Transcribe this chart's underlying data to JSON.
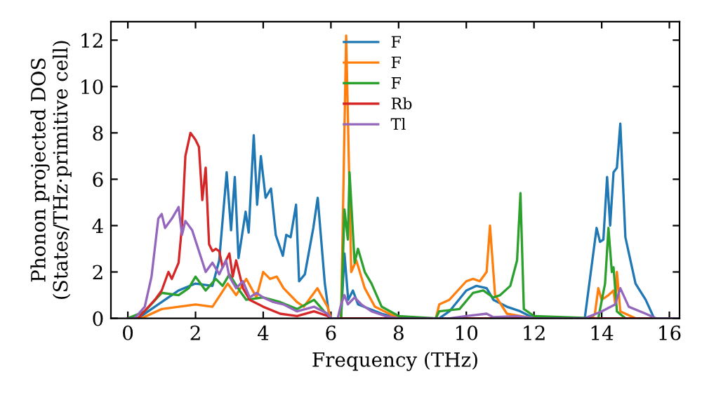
{
  "chart_data": {
    "type": "line",
    "xlabel": "Frequency (THz)",
    "ylabel": "Phonon projected DOS\n(States/THz·primitive cell)",
    "xlim": [
      -0.5,
      16.3
    ],
    "ylim": [
      0,
      12.8
    ],
    "xticks": [
      0,
      2,
      4,
      6,
      8,
      10,
      12,
      14,
      16
    ],
    "yticks": [
      0,
      2,
      4,
      6,
      8,
      10,
      12
    ],
    "grid": false,
    "legend": "top",
    "marker": "none",
    "line_style": "solid",
    "series": [
      {
        "name": "F",
        "color": "#1f77b4",
        "x": [
          0,
          0.3,
          1.0,
          1.5,
          2.0,
          2.5,
          2.7,
          2.92,
          3.05,
          3.16,
          3.27,
          3.48,
          3.57,
          3.72,
          3.82,
          3.93,
          4.07,
          4.23,
          4.37,
          4.58,
          4.68,
          4.81,
          4.97,
          5.06,
          5.23,
          5.48,
          5.61,
          5.82,
          5.96,
          6.3,
          6.4,
          6.51,
          6.65,
          6.8,
          7.5,
          8.0,
          9.2,
          9.5,
          10.0,
          10.3,
          10.6,
          10.8,
          11.2,
          11.6,
          12.0,
          13.5,
          13.85,
          13.95,
          14.05,
          14.16,
          14.25,
          14.35,
          14.45,
          14.55,
          14.7,
          15.0,
          15.3,
          15.55,
          16.3
        ],
        "values": [
          0,
          0,
          0.7,
          1.2,
          1.5,
          1.4,
          2.5,
          6.3,
          3.8,
          6.1,
          2.6,
          4.6,
          3.7,
          7.9,
          4.9,
          7.0,
          5.2,
          5.6,
          3.6,
          2.7,
          3.6,
          3.5,
          4.9,
          1.6,
          1.9,
          3.9,
          5.2,
          1.5,
          0,
          0,
          2.8,
          0.8,
          1.2,
          0.6,
          0.2,
          0,
          0,
          0.3,
          1.2,
          1.4,
          1.3,
          0.8,
          0.5,
          0.3,
          0,
          0,
          3.9,
          3.3,
          3.4,
          6.1,
          4.0,
          6.3,
          6.5,
          8.4,
          3.5,
          1.5,
          0.8,
          0,
          0
        ]
      },
      {
        "name": "F",
        "color": "#ff7f0e",
        "x": [
          0,
          0.4,
          1.0,
          1.5,
          2.0,
          2.5,
          2.95,
          3.2,
          3.5,
          3.8,
          4.0,
          4.2,
          4.4,
          4.6,
          5.0,
          5.2,
          5.6,
          5.9,
          6.0,
          6.3,
          6.45,
          6.6,
          6.75,
          7.0,
          7.3,
          8.0,
          9.1,
          9.2,
          9.5,
          10.0,
          10.2,
          10.4,
          10.6,
          10.7,
          10.85,
          11.2,
          11.6,
          12.0,
          13.7,
          13.8,
          13.9,
          14.0,
          14.2,
          14.35,
          14.4,
          14.45,
          14.55,
          15.0,
          16.3
        ],
        "values": [
          0,
          0,
          0.4,
          0.5,
          0.6,
          0.5,
          1.5,
          1.0,
          1.7,
          0.9,
          2.0,
          1.7,
          1.8,
          1.3,
          0.7,
          0.5,
          1.3,
          0.5,
          0,
          0,
          12.2,
          2.0,
          2.5,
          1.3,
          0.5,
          0,
          0,
          0.6,
          0.8,
          1.6,
          1.7,
          1.6,
          2.0,
          4.0,
          1.0,
          0.2,
          0.1,
          0,
          0,
          0.2,
          1.3,
          0.8,
          1.0,
          1.2,
          0.6,
          2.0,
          0.3,
          0,
          0
        ]
      },
      {
        "name": "F",
        "color": "#2ca02c",
        "x": [
          0,
          0.5,
          1.0,
          1.5,
          1.8,
          2.0,
          2.3,
          2.6,
          2.8,
          3.0,
          3.3,
          3.5,
          4.0,
          4.5,
          5.0,
          5.5,
          5.8,
          6.0,
          6.3,
          6.4,
          6.5,
          6.55,
          6.7,
          6.8,
          7.0,
          7.2,
          7.5,
          8.0,
          9.1,
          9.2,
          9.8,
          10.2,
          10.5,
          10.8,
          11.0,
          11.3,
          11.5,
          11.6,
          11.7,
          12.0,
          13.9,
          14.1,
          14.2,
          14.3,
          14.35,
          14.45,
          14.7,
          16.3
        ],
        "values": [
          0,
          0.3,
          1.1,
          1.0,
          1.3,
          1.8,
          1.2,
          1.7,
          1.4,
          1.9,
          1.2,
          0.8,
          0.9,
          0.7,
          0.4,
          0.8,
          0.3,
          0,
          0,
          4.7,
          3.4,
          6.3,
          2.4,
          3.0,
          2.0,
          1.5,
          0.5,
          0.1,
          0,
          0.3,
          0.4,
          1.1,
          1.2,
          0.9,
          1.0,
          1.4,
          2.5,
          5.4,
          0.4,
          0.1,
          0,
          1.5,
          3.9,
          2.0,
          2.2,
          0.3,
          0,
          0
        ]
      },
      {
        "name": "Rb",
        "color": "#d62728",
        "x": [
          0,
          0.3,
          0.8,
          1.0,
          1.2,
          1.3,
          1.5,
          1.6,
          1.7,
          1.85,
          2.0,
          2.1,
          2.2,
          2.3,
          2.4,
          2.5,
          2.6,
          2.7,
          2.8,
          3.0,
          3.1,
          3.2,
          3.4,
          3.6,
          4.0,
          4.5,
          5.0,
          5.5,
          5.9,
          6.0,
          16.3
        ],
        "values": [
          0,
          0,
          0.8,
          1.2,
          2.0,
          1.7,
          2.4,
          4.0,
          7.0,
          8.0,
          7.7,
          7.4,
          5.1,
          6.5,
          3.2,
          2.9,
          3.0,
          2.9,
          2.2,
          2.8,
          1.8,
          2.5,
          1.3,
          0.8,
          0.5,
          0.2,
          0.1,
          0.3,
          0.1,
          0,
          0
        ]
      },
      {
        "name": "Tl",
        "color": "#9467bd",
        "x": [
          0,
          0.2,
          0.5,
          0.7,
          0.9,
          1.0,
          1.1,
          1.3,
          1.5,
          1.6,
          1.7,
          1.9,
          2.1,
          2.3,
          2.5,
          2.7,
          2.9,
          3.0,
          3.2,
          3.4,
          3.6,
          3.8,
          4.0,
          4.3,
          4.6,
          5.0,
          5.5,
          5.9,
          6.0,
          6.2,
          6.3,
          6.4,
          6.5,
          6.7,
          6.9,
          7.2,
          7.6,
          8.0,
          9.5,
          10.0,
          10.6,
          10.8,
          11.5,
          12.0,
          13.5,
          14.0,
          14.4,
          14.55,
          14.8,
          15.3,
          15.6,
          16.3
        ],
        "values": [
          0,
          0,
          0.5,
          1.8,
          4.3,
          4.5,
          3.9,
          4.3,
          4.8,
          3.6,
          4.2,
          3.8,
          2.9,
          2.0,
          2.4,
          1.9,
          2.5,
          1.8,
          1.3,
          1.6,
          0.9,
          1.1,
          0.9,
          0.7,
          0.6,
          0.3,
          0.5,
          0.2,
          0,
          0,
          0.6,
          1.0,
          0.6,
          0.9,
          0.6,
          0.3,
          0.1,
          0,
          0,
          0.1,
          0.2,
          0.05,
          0.1,
          0,
          0,
          0.3,
          0.6,
          1.3,
          0.5,
          0.2,
          0,
          0
        ]
      }
    ]
  }
}
